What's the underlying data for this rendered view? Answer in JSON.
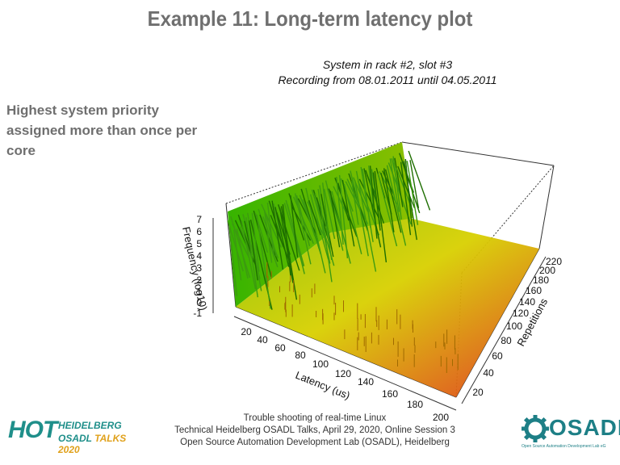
{
  "slide": {
    "title": "Example 11: Long-term latency plot",
    "side_note": [
      "Highest system priority",
      "assigned more than once per",
      "core"
    ],
    "footer": [
      "Trouble shooting of real-time Linux",
      "Technical Heidelberg OSADL Talks, April 29, 2020, Online Session 3",
      "Open Source Automation Development Lab (OSADL), Heidelberg"
    ],
    "logo_left": {
      "big": "HOT",
      "line1": "HEIDELBERG",
      "line2_a": "OSADL",
      "line2_b": "TALKS 2020"
    },
    "logo_right": {
      "text": "OSADL",
      "subtitle": "Open Source Automation Development Lab eG"
    }
  },
  "chart_data": {
    "type": "3d-surface",
    "title": [
      "System in rack #2, slot #3",
      "Recording from 08.01.2011 until 04.05.2011"
    ],
    "xlabel": "Latency (us)",
    "ylabel": "Repetitions",
    "zlabel": "Frequency (log10)",
    "x_ticks": [
      "20",
      "40",
      "60",
      "80",
      "100",
      "120",
      "140",
      "160",
      "180",
      "200"
    ],
    "y_ticks": [
      "20",
      "40",
      "60",
      "80",
      "100",
      "120",
      "140",
      "160",
      "180",
      "200",
      "220"
    ],
    "z_ticks": [
      "-1",
      "0",
      "1",
      "2",
      "3",
      "4",
      "5",
      "6",
      "7"
    ],
    "colors": {
      "high": "#2f9a00",
      "mid": "#c8d200",
      "low": "#e04020"
    }
  }
}
